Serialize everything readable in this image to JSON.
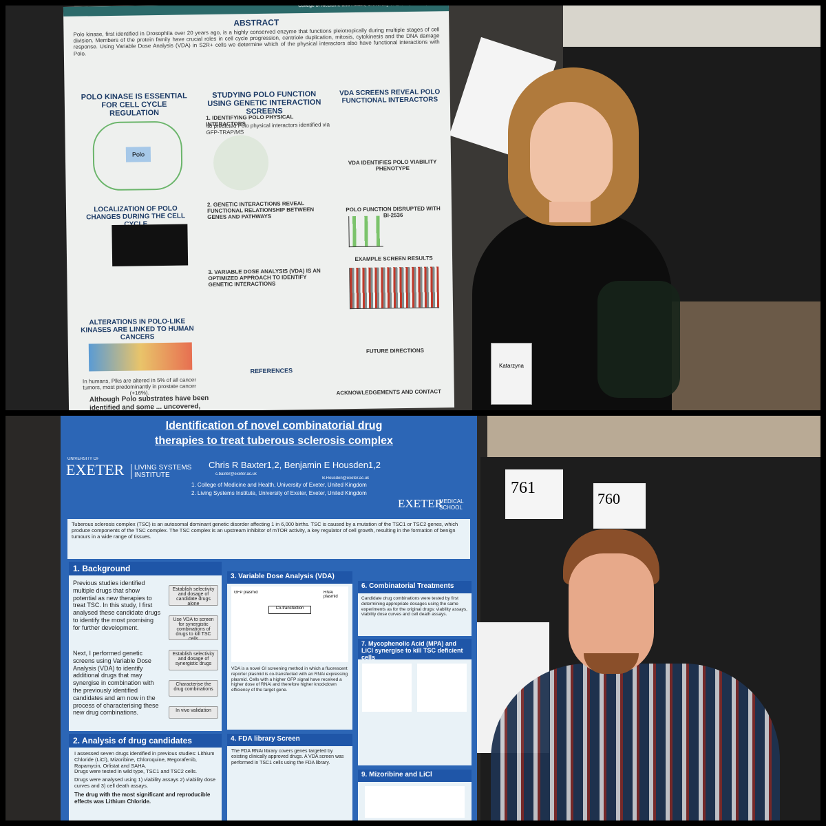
{
  "top_poster": {
    "header_affiliation": "College of Medicine and Health, University of Exeter, Exeter, UK",
    "abstract_title": "ABSTRACT",
    "abstract_text": "Polo kinase, first identified in Drosophila over 20 years ago, is a highly conserved enzyme that functions pleiotropically during multiple stages of cell division. Members of the protein family have crucial roles in cell cycle progression, centriole duplication, mitosis, cytokinesis and the DNA damage response. Using Variable Dose Analysis (VDA) in S2R+ cells we determine which of the physical interactors also have functional interactions with Polo.",
    "col1_title": "POLO KINASE IS ESSENTIAL FOR CELL CYCLE REGULATION",
    "col1_polo": "Polo",
    "col1_section2": "LOCALIZATION OF POLO CHANGES DURING THE CELL CYCLE",
    "col1_section3": "ALTERATIONS IN POLO-LIKE KINASES ARE LINKED TO HUMAN CANCERS",
    "col1_note": "In humans, Plks are altered in 5% of all cancer tumors, most predominantly in prostate cancer (+16%).",
    "col1_bottom": "Although Polo substrates have been identified and some ... uncovered,",
    "col2_title": "STUDYING POLO FUNCTION USING GENETIC INTERACTION SCREENS",
    "col2_sub1": "1. IDENTIFYING POLO PHYSICAL INTERACTORS",
    "col2_sub1_text": "40 predicted Polo physical interactors identified via GFP-TRAP/MS",
    "col2_sub2": "2. GENETIC INTERACTIONS REVEAL FUNCTIONAL RELATIONSHIP BETWEEN GENES AND PATHWAYS",
    "col2_sub3": "3. VARIABLE DOSE ANALYSIS (VDA) IS AN OPTIMIZED APPROACH TO IDENTIFY GENETIC INTERACTIONS",
    "col2_references": "REFERENCES",
    "col3_title": "VDA SCREENS REVEAL POLO FUNCTIONAL INTERACTORS",
    "col3_sub1": "VDA IDENTIFIES POLO VIABILITY PHENOTYPE",
    "col3_sub2": "POLO FUNCTION DISRUPTED WITH BI-2536",
    "col3_sub3": "EXAMPLE SCREEN RESULTS",
    "col3_sub4": "FUTURE DIRECTIONS",
    "acknowledgements": "ACKNOWLEDGEMENTS AND CONTACT"
  },
  "badge": {
    "name": "Katarzyna"
  },
  "bottom_poster": {
    "title": "Identification of novel combinatorial drug therapies to treat tuberous sclerosis complex",
    "authors": "Chris R Baxter1,2, Benjamin E Housden1,2",
    "email1": "c.baxter@exeter.ac.uk",
    "email2": "B.Housden@exeter.ac.uk",
    "affiliation1": "1. College of Medicine and Health, University of Exeter, United Kingdom",
    "affiliation2": "2. Living Systems Institute, University of Exeter, Exeter, United Kingdom",
    "logo_left_small": "UNIVERSITY OF",
    "logo_left": "EXETER",
    "logo_left_institute": "LIVING SYSTEMS INSTITUTE",
    "logo_right": "EXETER",
    "logo_right_school": "MEDICAL SCHOOL",
    "intro": "Tuberous sclerosis complex (TSC) is an autosomal dominant genetic disorder affecting 1 in 6,000 births. TSC is caused by a mutation of the TSC1 or TSC2 genes, which produce components of the TSC complex. The TSC complex is an upstream inhibitor of mTOR activity, a key regulator of cell growth, resulting in the formation of benign tumours in a wide range of tissues.",
    "background_title": "1. Background",
    "background_text1": "Previous studies identified multiple drugs that show potential as new therapies to treat TSC. In this study, I first analysed these candidate drugs to identify the most promising for further development.",
    "background_text2": "Next, I performed genetic screens using Variable Dose Analysis (VDA) to identify additional drugs that may synergise in combination with the previously identified candidates and am now in the process of characterising these new drug combinations.",
    "flow": [
      "Establish selectivity and dosage of candidate drugs alone",
      "Use VDA to screen for synergistic combinations of drugs to kill TSC cells",
      "Establish selectivity and dosage of synergistic drugs",
      "Characterise the drug combinations",
      "In vivo validation"
    ],
    "analysis_title": "2. Analysis of drug candidates",
    "analysis_items": [
      "I assessed seven drugs identified in previous studies: Lithium Chloride (LiCl), Mizoribine, Chloroquine, Regorafenib, Rapamycin, Orlistat and SAHA.",
      "Drugs were tested in wild type, TSC1 and TSC2 cells.",
      "Drugs were analysed using 1) viability assays 2) viability dose curves and 3) cell death assays."
    ],
    "analysis_conclusion": "The drug with the most significant and reproducible effects was Lithium Chloride.",
    "vda_title": "3. Variable Dose Analysis (VDA)",
    "vda_gfp": "GFP plasmid",
    "vda_rnai": "RNAi plasmid",
    "vda_cotransfection": "Co-transfection",
    "vda_text": "VDA is a novel GI screening method in which a fluorescent reporter plasmid is co-transfected with an RNAi expressing plasmid. Cells with a higher GFP signal have received a higher dose of RNAi and therefore higher knockdown efficiency of the target gene.",
    "fda_title": "4. FDA library Screen",
    "fda_text": "The FDA RNAi library covers genes targeted by existing clinically approved drugs. A VDA screen was performed in TSC1 cells using the FDA library.",
    "comb_title": "6. Combinatorial Treatments",
    "comb_text": "Candidate drug combinations were tested by first determining appropriate dosages using the same experiments as for the original drugs: viability assays, viability dose curves and cell death assays.",
    "mpa_title": "7. Mycophenolic Acid (MPA) and LiCl synergise to kill TSC deficient cells",
    "miz_title": "9. Mizoribine and LiCl"
  },
  "booths": [
    "761",
    "760"
  ]
}
